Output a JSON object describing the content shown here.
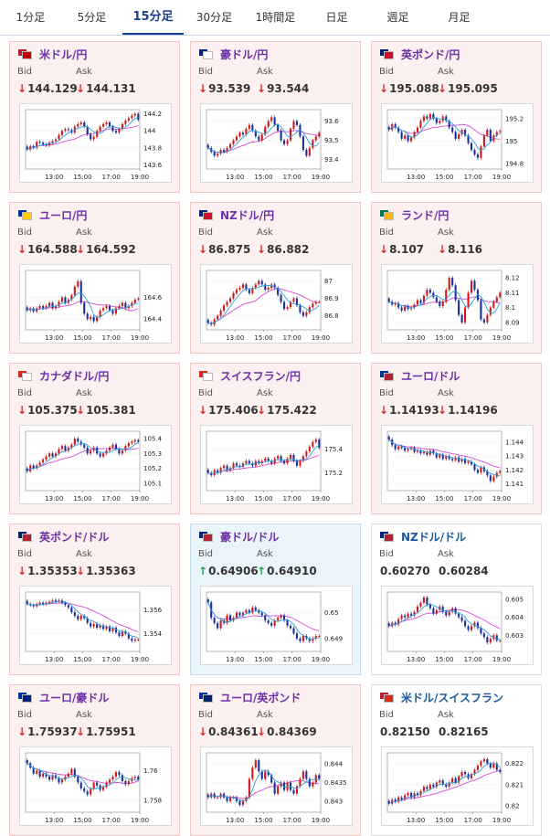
{
  "tabs": [
    {
      "label": "1分足",
      "active": false
    },
    {
      "label": "5分足",
      "active": false
    },
    {
      "label": "15分足",
      "active": true
    },
    {
      "label": "30分足",
      "active": false
    },
    {
      "label": "1時間足",
      "active": false
    },
    {
      "label": "日足",
      "active": false
    },
    {
      "label": "週足",
      "active": false
    },
    {
      "label": "月足",
      "active": false
    }
  ],
  "labels": {
    "bid": "Bid",
    "ask": "Ask"
  },
  "colors": {
    "down": "#d03030",
    "up": "#2c9a4f",
    "candle_up": "#d01818",
    "candle_down": "#1a2f9c",
    "ma_short": "#2a9fd8",
    "ma_long": "#d64ad6"
  },
  "cards": [
    {
      "pair": "米ドル/円",
      "flags": [
        "#b22234",
        "#c00000"
      ],
      "trend": "down",
      "bid_arrow": "↓",
      "bid": "144.129",
      "ask_arrow": "↓",
      "ask": "144.131",
      "chart": {
        "xticks": [
          "13:00",
          "15:00",
          "17:00",
          "19:00"
        ],
        "yticks": [
          144.2,
          144,
          143.8,
          143.6
        ],
        "ytick_labels": [
          "144.2",
          "144",
          "143.8",
          "143.6"
        ],
        "ylim": [
          143.55,
          144.25
        ],
        "close": [
          143.78,
          143.82,
          143.8,
          143.87,
          143.86,
          143.84,
          143.83,
          143.86,
          143.88,
          143.9,
          143.95,
          144.0,
          144.02,
          144.01,
          143.98,
          144.05,
          144.08,
          144.1,
          144.05,
          143.96,
          143.9,
          143.93,
          144.0,
          144.05,
          144.08,
          144.1,
          144.05,
          144.0,
          143.98,
          144.02,
          144.08,
          144.12,
          144.15,
          144.18,
          144.2,
          144.13
        ]
      }
    },
    {
      "pair": "豪ドル/円",
      "flags": [
        "#00247d",
        "#ffffff"
      ],
      "trend": "down",
      "bid_arrow": "↓",
      "bid": "93.539",
      "ask_arrow": "↓",
      "ask": "93.544",
      "chart": {
        "xticks": [
          "13:00",
          "15:00",
          "17:00",
          "19:00"
        ],
        "yticks": [
          93.6,
          93.5,
          93.4
        ],
        "ytick_labels": [
          "93.6",
          "93.5",
          "93.4"
        ],
        "ylim": [
          93.35,
          93.66
        ],
        "close": [
          93.46,
          93.44,
          93.42,
          93.43,
          93.45,
          93.44,
          93.46,
          93.48,
          93.5,
          93.52,
          93.54,
          93.53,
          93.56,
          93.58,
          93.55,
          93.52,
          93.5,
          93.53,
          93.57,
          93.6,
          93.62,
          93.58,
          93.55,
          93.5,
          93.48,
          93.5,
          93.56,
          93.6,
          93.58,
          93.52,
          93.45,
          93.42,
          93.46,
          93.5,
          93.52,
          93.54
        ]
      }
    },
    {
      "pair": "英ポンド/円",
      "flags": [
        "#012169",
        "#c8102e"
      ],
      "trend": "down",
      "bid_arrow": "↓",
      "bid": "195.088",
      "ask_arrow": "↓",
      "ask": "195.095",
      "chart": {
        "xticks": [
          "13:00",
          "15:00",
          "17:00",
          "19:00"
        ],
        "yticks": [
          195.2,
          195,
          194.8
        ],
        "ytick_labels": [
          "195.2",
          "195",
          "194.8"
        ],
        "ylim": [
          194.75,
          195.28
        ],
        "close": [
          195.1,
          195.15,
          195.12,
          195.08,
          195.02,
          195.05,
          195.0,
          195.03,
          195.08,
          195.12,
          195.18,
          195.22,
          195.2,
          195.24,
          195.2,
          195.16,
          195.18,
          195.22,
          195.18,
          195.12,
          195.08,
          195.02,
          195.06,
          195.1,
          195.05,
          194.98,
          194.92,
          194.88,
          194.85,
          194.95,
          195.05,
          195.1,
          195.0,
          195.05,
          195.08,
          195.09
        ]
      }
    },
    {
      "pair": "ユーロ/円",
      "flags": [
        "#003399",
        "#ffcc00"
      ],
      "trend": "down",
      "bid_arrow": "↓",
      "bid": "164.588",
      "ask_arrow": "↓",
      "ask": "164.592",
      "chart": {
        "xticks": [
          "13:00",
          "15:00",
          "17:00",
          "19:00"
        ],
        "yticks": [
          164.6,
          164.4
        ],
        "ytick_labels": [
          "164.6",
          "164.4"
        ],
        "ylim": [
          164.3,
          164.85
        ],
        "close": [
          164.48,
          164.5,
          164.47,
          164.5,
          164.52,
          164.5,
          164.52,
          164.55,
          164.5,
          164.52,
          164.56,
          164.6,
          164.55,
          164.58,
          164.62,
          164.7,
          164.75,
          164.55,
          164.45,
          164.4,
          164.42,
          164.38,
          164.42,
          164.48,
          164.5,
          164.52,
          164.48,
          164.45,
          164.5,
          164.52,
          164.55,
          164.5,
          164.52,
          164.55,
          164.58,
          164.59
        ]
      }
    },
    {
      "pair": "NZドル/円",
      "flags": [
        "#00247d",
        "#cc142b"
      ],
      "trend": "down",
      "bid_arrow": "↓",
      "bid": "86.875",
      "ask_arrow": "↓",
      "ask": "86.882",
      "chart": {
        "xticks": [
          "13:00",
          "15:00",
          "17:00",
          "19:00"
        ],
        "yticks": [
          87,
          86.9,
          86.8
        ],
        "ytick_labels": [
          "87",
          "86.9",
          "86.8"
        ],
        "ylim": [
          86.72,
          87.06
        ],
        "close": [
          86.76,
          86.75,
          86.78,
          86.8,
          86.83,
          86.86,
          86.88,
          86.9,
          86.93,
          86.95,
          86.96,
          86.98,
          86.95,
          86.93,
          86.96,
          86.98,
          87.0,
          86.98,
          86.95,
          86.96,
          86.98,
          86.96,
          86.92,
          86.88,
          86.84,
          86.85,
          86.88,
          86.9,
          86.86,
          86.82,
          86.8,
          86.82,
          86.85,
          86.87,
          86.88,
          86.88
        ]
      }
    },
    {
      "pair": "ランド/円",
      "flags": [
        "#007a4d",
        "#ffb612"
      ],
      "trend": "down",
      "bid_arrow": "↓",
      "bid": "8.107",
      "ask_arrow": "↓",
      "ask": "8.116",
      "chart": {
        "xticks": [
          "13:00",
          "15:00",
          "17:00",
          "19:00"
        ],
        "yticks": [
          8.12,
          8.11,
          8.1,
          8.09
        ],
        "ytick_labels": [
          "8.12",
          "8.11",
          "8.1",
          "8.09"
        ],
        "ylim": [
          8.085,
          8.125
        ],
        "close": [
          8.104,
          8.102,
          8.103,
          8.1,
          8.098,
          8.101,
          8.099,
          8.1,
          8.102,
          8.105,
          8.103,
          8.108,
          8.112,
          8.11,
          8.107,
          8.104,
          8.101,
          8.104,
          8.112,
          8.12,
          8.115,
          8.105,
          8.095,
          8.09,
          8.1,
          8.11,
          8.118,
          8.112,
          8.105,
          8.092,
          8.09,
          8.095,
          8.1,
          8.104,
          8.107,
          8.11
        ]
      }
    },
    {
      "pair": "カナダドル/円",
      "flags": [
        "#d52b1e",
        "#ffffff"
      ],
      "trend": "down",
      "bid_arrow": "↓",
      "bid": "105.375",
      "ask_arrow": "↓",
      "ask": "105.381",
      "chart": {
        "xticks": [
          "13:00",
          "15:00",
          "17:00",
          "19:00"
        ],
        "yticks": [
          105.4,
          105.3,
          105.2,
          105.1
        ],
        "ytick_labels": [
          "105.4",
          "105.3",
          "105.2",
          "105.1"
        ],
        "ylim": [
          105.05,
          105.45
        ],
        "close": [
          105.18,
          105.22,
          105.2,
          105.22,
          105.24,
          105.26,
          105.28,
          105.3,
          105.28,
          105.3,
          105.33,
          105.35,
          105.32,
          105.34,
          105.36,
          105.4,
          105.38,
          105.36,
          105.34,
          105.3,
          105.32,
          105.34,
          105.3,
          105.28,
          105.3,
          105.32,
          105.34,
          105.36,
          105.33,
          105.3,
          105.32,
          105.35,
          105.37,
          105.38,
          105.39,
          105.38
        ]
      }
    },
    {
      "pair": "スイスフラン/円",
      "flags": [
        "#d52b1e",
        "#ffffff"
      ],
      "trend": "down",
      "bid_arrow": "↓",
      "bid": "175.406",
      "ask_arrow": "↓",
      "ask": "175.422",
      "chart": {
        "xticks": [
          "13:00",
          "15:00",
          "17:00",
          "19:00"
        ],
        "yticks": [
          175.4,
          175.2
        ],
        "ytick_labels": [
          "175.4",
          "175.2"
        ],
        "ylim": [
          175.05,
          175.55
        ],
        "close": [
          175.2,
          175.18,
          175.22,
          175.2,
          175.24,
          175.26,
          175.22,
          175.24,
          175.28,
          175.26,
          175.25,
          175.28,
          175.3,
          175.28,
          175.26,
          175.3,
          175.28,
          175.3,
          175.32,
          175.3,
          175.28,
          175.32,
          175.34,
          175.3,
          175.28,
          175.32,
          175.35,
          175.3,
          175.26,
          175.3,
          175.34,
          175.38,
          175.42,
          175.46,
          175.48,
          175.41
        ]
      }
    },
    {
      "pair": "ユーロ/ドル",
      "flags": [
        "#003399",
        "#b22234"
      ],
      "trend": "down",
      "bid_arrow": "↓",
      "bid": "1.14193",
      "ask_arrow": "↓",
      "ask": "1.14196",
      "chart": {
        "xticks": [
          "13:00",
          "15:00",
          "17:00",
          "19:00"
        ],
        "yticks": [
          1.144,
          1.143,
          1.142,
          1.141
        ],
        "ytick_labels": [
          "1.144",
          "1.143",
          "1.142",
          "1.141"
        ],
        "ylim": [
          1.1405,
          1.1448
        ],
        "close": [
          1.1442,
          1.1438,
          1.1435,
          1.1437,
          1.1436,
          1.1434,
          1.1435,
          1.1436,
          1.1433,
          1.1434,
          1.1432,
          1.1433,
          1.1431,
          1.1434,
          1.1432,
          1.1429,
          1.1431,
          1.1428,
          1.143,
          1.1428,
          1.1427,
          1.1429,
          1.1426,
          1.1428,
          1.1425,
          1.1426,
          1.1424,
          1.142,
          1.1418,
          1.1422,
          1.1419,
          1.1416,
          1.1412,
          1.1415,
          1.1418,
          1.1419
        ]
      }
    },
    {
      "pair": "英ポンド/ドル",
      "flags": [
        "#012169",
        "#b22234"
      ],
      "trend": "down",
      "bid_arrow": "↓",
      "bid": "1.35353",
      "ask_arrow": "↓",
      "ask": "1.35363",
      "chart": {
        "xticks": [
          "13:00",
          "15:00",
          "17:00",
          "19:00"
        ],
        "yticks": [
          1.356,
          1.354
        ],
        "ytick_labels": [
          "1.356",
          "1.354"
        ],
        "ylim": [
          1.3525,
          1.3575
        ],
        "close": [
          1.3565,
          1.3564,
          1.3563,
          1.3565,
          1.3566,
          1.3565,
          1.3566,
          1.3567,
          1.3568,
          1.3567,
          1.3568,
          1.3566,
          1.3564,
          1.3562,
          1.3558,
          1.3555,
          1.3552,
          1.3555,
          1.3553,
          1.3549,
          1.3546,
          1.3548,
          1.3545,
          1.3547,
          1.3544,
          1.3546,
          1.3542,
          1.3545,
          1.3541,
          1.3538,
          1.3542,
          1.354,
          1.3536,
          1.3534,
          1.3535,
          1.3535
        ]
      }
    },
    {
      "pair": "豪ドル/ドル",
      "flags": [
        "#00247d",
        "#b22234"
      ],
      "trend": "up",
      "bid_arrow": "↑",
      "bid": "0.64906",
      "ask_arrow": "↑",
      "ask": "0.64910",
      "chart": {
        "xticks": [
          "13:00",
          "15:00",
          "17:00",
          "19:00"
        ],
        "yticks": [
          0.65,
          0.649
        ],
        "ytick_labels": [
          "0.65",
          "0.649"
        ],
        "ylim": [
          0.6485,
          0.6508
        ],
        "close": [
          0.6504,
          0.6498,
          0.6496,
          0.6494,
          0.6497,
          0.6496,
          0.6499,
          0.6497,
          0.6498,
          0.65,
          0.6499,
          0.65,
          0.6501,
          0.65,
          0.6502,
          0.6501,
          0.65,
          0.6499,
          0.6497,
          0.6496,
          0.6495,
          0.6497,
          0.6498,
          0.6499,
          0.6497,
          0.6495,
          0.6494,
          0.6492,
          0.649,
          0.6489,
          0.6491,
          0.649,
          0.6489,
          0.649,
          0.6491,
          0.6491
        ]
      }
    },
    {
      "pair": "NZドル/ドル",
      "flags": [
        "#00247d",
        "#b22234"
      ],
      "trend": "neutral",
      "bid_arrow": "",
      "bid": "0.60270",
      "ask_arrow": "",
      "ask": "0.60284",
      "chart": {
        "xticks": [
          "13:00",
          "15:00",
          "17:00",
          "19:00"
        ],
        "yticks": [
          0.605,
          0.604,
          0.603
        ],
        "ytick_labels": [
          "0.605",
          "0.604",
          "0.603"
        ],
        "ylim": [
          0.6021,
          0.6054
        ],
        "close": [
          0.6035,
          0.6037,
          0.6036,
          0.6039,
          0.6041,
          0.604,
          0.6042,
          0.6041,
          0.6043,
          0.6046,
          0.6048,
          0.6051,
          0.6047,
          0.6045,
          0.6042,
          0.6044,
          0.6046,
          0.6043,
          0.6041,
          0.6043,
          0.6045,
          0.6042,
          0.604,
          0.6038,
          0.6035,
          0.6033,
          0.6035,
          0.6037,
          0.6034,
          0.6031,
          0.6029,
          0.6026,
          0.6028,
          0.603,
          0.6027,
          0.6027
        ]
      }
    },
    {
      "pair": "ユーロ/豪ドル",
      "flags": [
        "#003399",
        "#00247d"
      ],
      "trend": "down",
      "bid_arrow": "↓",
      "bid": "1.75937",
      "ask_arrow": "↓",
      "ask": "1.75951",
      "chart": {
        "xticks": [
          "13:00",
          "15:00",
          "17:00",
          "19:00"
        ],
        "yticks": [
          1.76,
          1.758
        ],
        "ytick_labels": [
          "1.76",
          "1.758"
        ],
        "ylim": [
          1.7572,
          1.7612
        ],
        "close": [
          1.7605,
          1.7602,
          1.7598,
          1.76,
          1.7596,
          1.7598,
          1.7596,
          1.7594,
          1.7597,
          1.7595,
          1.7592,
          1.7594,
          1.7596,
          1.7598,
          1.7601,
          1.7596,
          1.7592,
          1.7588,
          1.7586,
          1.7584,
          1.7588,
          1.7592,
          1.759,
          1.7587,
          1.7589,
          1.7592,
          1.7594,
          1.7596,
          1.7599,
          1.7597,
          1.7593,
          1.7591,
          1.7593,
          1.7595,
          1.7596,
          1.7594
        ]
      }
    },
    {
      "pair": "ユーロ/英ポンド",
      "flags": [
        "#003399",
        "#012169"
      ],
      "trend": "down",
      "bid_arrow": "↓",
      "bid": "0.84361",
      "ask_arrow": "↓",
      "ask": "0.84369",
      "chart": {
        "xticks": [
          "13:00",
          "15:00",
          "17:00",
          "19:00"
        ],
        "yticks": [
          0.844,
          0.8435,
          0.843
        ],
        "ytick_labels": [
          "0.844",
          "0.8435",
          "0.843"
        ],
        "ylim": [
          0.8427,
          0.8443
        ],
        "close": [
          0.8431,
          0.8432,
          0.8431,
          0.8431,
          0.8432,
          0.8431,
          0.843,
          0.8431,
          0.8431,
          0.843,
          0.8429,
          0.843,
          0.8431,
          0.8436,
          0.8439,
          0.8441,
          0.8438,
          0.8436,
          0.8438,
          0.8437,
          0.8435,
          0.8432,
          0.8434,
          0.8435,
          0.8433,
          0.8435,
          0.8433,
          0.8432,
          0.8434,
          0.8436,
          0.8438,
          0.8436,
          0.8434,
          0.8435,
          0.8437,
          0.8436
        ]
      }
    },
    {
      "pair": "米ドル/スイスフラン",
      "flags": [
        "#b22234",
        "#d52b1e"
      ],
      "trend": "neutral",
      "bid_arrow": "",
      "bid": "0.82150",
      "ask_arrow": "",
      "ask": "0.82165",
      "chart": {
        "xticks": [
          "13:00",
          "15:00",
          "17:00",
          "19:00"
        ],
        "yticks": [
          0.822,
          0.821,
          0.82
        ],
        "ytick_labels": [
          "0.822",
          "0.821",
          "0.82"
        ],
        "ylim": [
          0.8197,
          0.8225
        ],
        "close": [
          0.8201,
          0.8203,
          0.8202,
          0.8204,
          0.8203,
          0.8205,
          0.8206,
          0.8204,
          0.8206,
          0.8205,
          0.8207,
          0.8209,
          0.8208,
          0.821,
          0.8209,
          0.8211,
          0.8212,
          0.821,
          0.8209,
          0.8211,
          0.8213,
          0.8211,
          0.8214,
          0.8216,
          0.8215,
          0.8213,
          0.8215,
          0.8217,
          0.8219,
          0.8221,
          0.8222,
          0.822,
          0.8218,
          0.822,
          0.8217,
          0.8216
        ]
      }
    }
  ]
}
